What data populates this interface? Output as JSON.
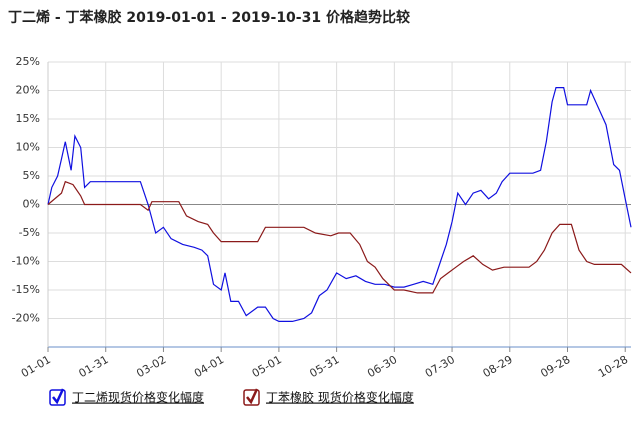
{
  "chart_data": {
    "type": "line",
    "title": "丁二烯 - 丁苯橡胶 2019-01-01 - 2019-10-31 价格趋势比较",
    "xlim": [
      "01-01",
      "10-31"
    ],
    "xticks": [
      "01-01",
      "01-31",
      "03-02",
      "04-01",
      "05-01",
      "05-31",
      "06-30",
      "07-30",
      "08-29",
      "09-28",
      "10-28"
    ],
    "ylim": [
      -25,
      25
    ],
    "yticks": [
      {
        "value": -20,
        "label": "-20%"
      },
      {
        "value": -15,
        "label": "-15%"
      },
      {
        "value": -10,
        "label": "-10%"
      },
      {
        "value": -5,
        "label": "-5%"
      },
      {
        "value": 0,
        "label": "0%"
      },
      {
        "value": 5,
        "label": "5%"
      },
      {
        "value": 10,
        "label": "10%"
      },
      {
        "value": 15,
        "label": "15%"
      },
      {
        "value": 20,
        "label": "20%"
      },
      {
        "value": 25,
        "label": "25%"
      }
    ],
    "grid": true,
    "series": [
      {
        "name": "丁二烯现货价格变化幅度",
        "color": "#1010e0",
        "x": [
          "01-01",
          "01-03",
          "01-06",
          "01-08",
          "01-10",
          "01-13",
          "01-15",
          "01-18",
          "01-20",
          "01-23",
          "01-31",
          "02-10",
          "02-18",
          "02-22",
          "02-26",
          "03-02",
          "03-06",
          "03-12",
          "03-18",
          "03-22",
          "03-25",
          "03-28",
          "04-01",
          "04-03",
          "04-06",
          "04-10",
          "04-14",
          "04-20",
          "04-24",
          "04-28",
          "05-01",
          "05-08",
          "05-14",
          "05-18",
          "05-22",
          "05-26",
          "05-31",
          "06-05",
          "06-10",
          "06-15",
          "06-20",
          "06-25",
          "06-30",
          "07-05",
          "07-10",
          "07-15",
          "07-20",
          "07-24",
          "07-27",
          "07-30",
          "08-02",
          "08-06",
          "08-10",
          "08-14",
          "08-18",
          "08-22",
          "08-25",
          "08-29",
          "09-02",
          "09-10",
          "09-14",
          "09-17",
          "09-20",
          "09-22",
          "09-26",
          "09-28",
          "10-04",
          "10-08",
          "10-10",
          "10-14",
          "10-18",
          "10-22",
          "10-25",
          "10-28",
          "10-31"
        ],
        "values": [
          0,
          3,
          5,
          8,
          11,
          6,
          12,
          10,
          3,
          4,
          4,
          4,
          4,
          0,
          -5,
          -4,
          -6,
          -7,
          -7.5,
          -8,
          -9,
          -14,
          -15,
          -12,
          -17,
          -17,
          -19.5,
          -18,
          -18,
          -20,
          -20.5,
          -20.5,
          -20,
          -19,
          -16,
          -15,
          -12,
          -13,
          -12.5,
          -13.5,
          -14,
          -14,
          -14.5,
          -14.5,
          -14,
          -13.5,
          -14,
          -10,
          -7,
          -3,
          2,
          0,
          2,
          2.5,
          1,
          2,
          4,
          5.5,
          5.5,
          5.5,
          6,
          11,
          18,
          20.5,
          20.5,
          17.5,
          17.5,
          17.5,
          20,
          17,
          14,
          7,
          6,
          1,
          -4
        ]
      },
      {
        "name": "丁苯橡胶 现货价格变化幅度",
        "color": "#8b1a1a",
        "x": [
          "01-01",
          "01-08",
          "01-10",
          "01-14",
          "01-18",
          "01-20",
          "02-18",
          "02-22",
          "02-24",
          "03-02",
          "03-10",
          "03-14",
          "03-20",
          "03-25",
          "03-28",
          "04-01",
          "04-20",
          "04-24",
          "05-01",
          "05-14",
          "05-20",
          "05-28",
          "06-01",
          "06-07",
          "06-12",
          "06-16",
          "06-20",
          "06-24",
          "06-27",
          "06-30",
          "07-05",
          "07-12",
          "07-20",
          "07-24",
          "07-28",
          "08-01",
          "08-05",
          "08-10",
          "08-15",
          "08-20",
          "08-26",
          "09-01",
          "09-08",
          "09-12",
          "09-16",
          "09-20",
          "09-24",
          "09-30",
          "10-04",
          "10-08",
          "10-12",
          "10-26",
          "10-31"
        ],
        "values": [
          0,
          2,
          4,
          3.5,
          1.5,
          0,
          0,
          -1,
          0.5,
          0.5,
          0.5,
          -2,
          -3,
          -3.5,
          -5,
          -6.5,
          -6.5,
          -4,
          -4,
          -4,
          -5,
          -5.5,
          -5,
          -5,
          -7,
          -10,
          -11,
          -13,
          -14,
          -15,
          -15,
          -15.5,
          -15.5,
          -13,
          -12,
          -11,
          -10,
          -9,
          -10.5,
          -11.5,
          -11,
          -11,
          -11,
          -10,
          -8,
          -5,
          -3.5,
          -3.5,
          -8,
          -10,
          -10.5,
          -10.5,
          -12
        ]
      }
    ]
  }
}
